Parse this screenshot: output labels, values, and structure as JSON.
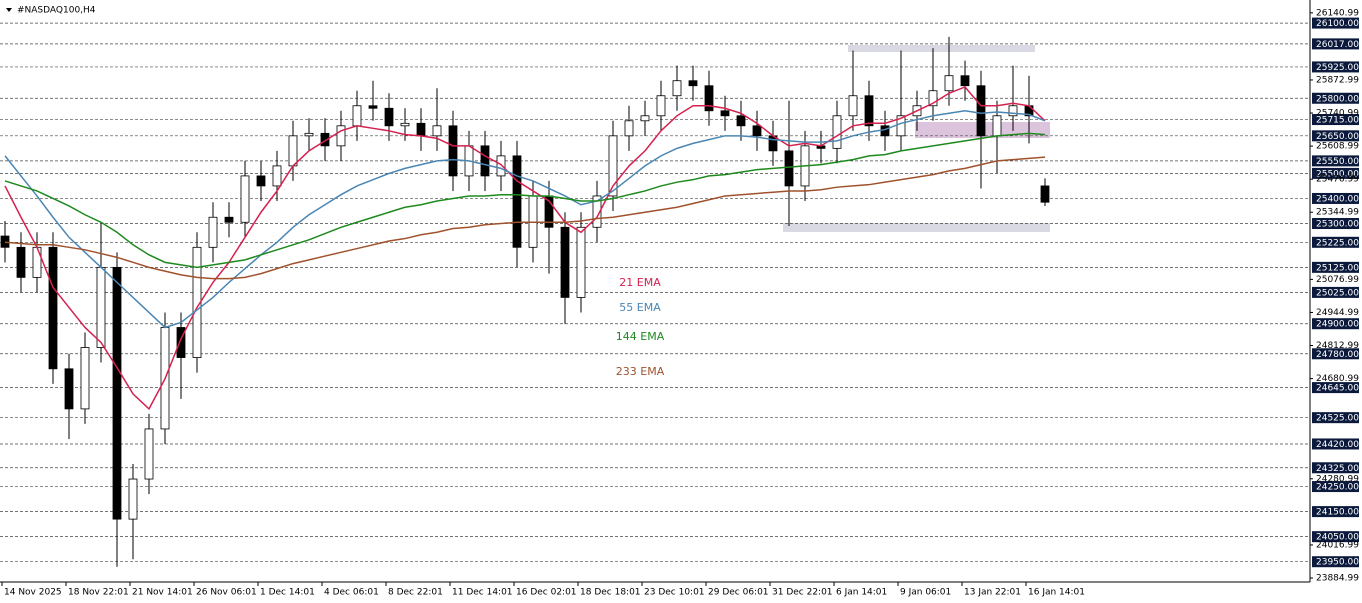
{
  "chart_data": {
    "type": "candlestick",
    "title": "#NASDAQ100,H4",
    "ylim": [
      23877,
      26193
    ],
    "yticks": [
      26140.99,
      25872.99,
      25740.99,
      25608.99,
      25476.99,
      25344.99,
      25076.99,
      24944.99,
      24812.99,
      24680.99,
      24280.99,
      24016.99,
      23884.99
    ],
    "levels": [
      {
        "value": 26100,
        "label": "26100.00"
      },
      {
        "value": 26017,
        "label": "26017.00"
      },
      {
        "value": 25925,
        "label": "25925.00"
      },
      {
        "value": 25800,
        "label": "25800.00"
      },
      {
        "value": 25715,
        "label": "25715.00"
      },
      {
        "value": 25650,
        "label": "25650.00"
      },
      {
        "value": 25550,
        "label": "25550.00"
      },
      {
        "value": 25500,
        "label": "25500.00"
      },
      {
        "value": 25400,
        "label": "25400.00"
      },
      {
        "value": 25300,
        "label": "25300.00"
      },
      {
        "value": 25225,
        "label": "25225.00"
      },
      {
        "value": 25125,
        "label": "25125.00"
      },
      {
        "value": 25025,
        "label": "25025.00"
      },
      {
        "value": 24900,
        "label": "24900.00"
      },
      {
        "value": 24780,
        "label": "24780.00"
      },
      {
        "value": 24645,
        "label": "24645.00"
      },
      {
        "value": 24525,
        "label": "24525.00"
      },
      {
        "value": 24420,
        "label": "24420.00"
      },
      {
        "value": 24325,
        "label": "24325.00"
      },
      {
        "value": 24250,
        "label": "24250.00"
      },
      {
        "value": 24150,
        "label": "24150.00"
      },
      {
        "value": 24050,
        "label": "24050.00"
      },
      {
        "value": 23950,
        "label": "23950.00"
      }
    ],
    "x_labels": [
      "14 Nov 2025",
      "18 Nov 22:01",
      "21 Nov 14:01",
      "26 Nov 06:01",
      "1 Dec 14:01",
      "4 Dec 06:01",
      "8 Dec 22:01",
      "11 Dec 14:01",
      "16 Dec 02:01",
      "18 Dec 18:01",
      "23 Dec 10:01",
      "29 Dec 06:01",
      "31 Dec 22:01",
      "6 Jan 14:01",
      "9 Jan 06:01",
      "13 Jan 22:01",
      "16 Jan 14:01"
    ],
    "open": [
      25250,
      25205,
      25085,
      25205,
      24720,
      24560,
      24805,
      25125,
      24120,
      24280,
      24480,
      24885,
      24765,
      25205,
      25325,
      25305,
      25490,
      25450,
      25530,
      25650,
      25660,
      25610,
      25690,
      25770,
      25760,
      25690,
      25700,
      25650,
      25690,
      25490,
      25610,
      25490,
      25570,
      25205,
      25410,
      25285,
      25005,
      25285,
      25410,
      25650,
      25710,
      25730,
      25810,
      25870,
      25850,
      25750,
      25730,
      25690,
      25650,
      25590,
      25450,
      25610,
      25600,
      25730,
      25810,
      25690,
      25650,
      25730,
      25770,
      25830,
      25890,
      25850,
      25650,
      25730,
      25770,
      25450
    ],
    "high": [
      25310,
      25265,
      25265,
      25265,
      24780,
      24865,
      25300,
      25185,
      24340,
      24540,
      24945,
      24945,
      25265,
      25385,
      25385,
      25550,
      25550,
      25590,
      25710,
      25720,
      25720,
      25750,
      25830,
      25870,
      25820,
      25760,
      25760,
      25840,
      25750,
      25670,
      25670,
      25630,
      25630,
      25470,
      25470,
      25345,
      25345,
      25470,
      25710,
      25770,
      25790,
      25870,
      25930,
      25930,
      25910,
      25810,
      25790,
      25750,
      25710,
      25790,
      25670,
      25670,
      25790,
      25990,
      25870,
      25750,
      25990,
      25830,
      26000,
      26045,
      25950,
      25910,
      25790,
      25930,
      25890,
      25480
    ],
    "low": [
      25145,
      25025,
      25025,
      24660,
      24440,
      24500,
      24745,
      23930,
      23960,
      24220,
      24420,
      24600,
      24705,
      25145,
      25245,
      25245,
      25390,
      25390,
      25470,
      25590,
      25550,
      25550,
      25630,
      25710,
      25630,
      25630,
      25590,
      25590,
      25430,
      25430,
      25430,
      25430,
      25125,
      25145,
      25100,
      24900,
      24945,
      25225,
      25350,
      25590,
      25650,
      25670,
      25750,
      25790,
      25690,
      25670,
      25630,
      25590,
      25530,
      25290,
      25390,
      25540,
      25540,
      25670,
      25630,
      25590,
      25590,
      25670,
      25710,
      25770,
      25790,
      25440,
      25500,
      25670,
      25620,
      25370
    ],
    "close": [
      25205,
      25085,
      25205,
      24720,
      24560,
      24805,
      25125,
      24120,
      24280,
      24480,
      24885,
      24765,
      25205,
      25325,
      25305,
      25490,
      25450,
      25530,
      25650,
      25660,
      25610,
      25690,
      25770,
      25760,
      25690,
      25700,
      25650,
      25690,
      25490,
      25610,
      25490,
      25570,
      25205,
      25410,
      25285,
      25005,
      25285,
      25410,
      25650,
      25710,
      25730,
      25810,
      25870,
      25850,
      25750,
      25730,
      25690,
      25650,
      25590,
      25450,
      25610,
      25600,
      25730,
      25810,
      25690,
      25650,
      25730,
      25770,
      25830,
      25890,
      25850,
      25650,
      25730,
      25770,
      25730,
      25385
    ],
    "series": [
      {
        "name": "21 EMA",
        "color": "#d6204e",
        "values": [
          25450,
          25325,
          25205,
          25045,
          24965,
          24885,
          24825,
          24725,
          24620,
          24560,
          24680,
          24840,
          24965,
          25065,
          25145,
          25245,
          25345,
          25430,
          25530,
          25590,
          25630,
          25670,
          25690,
          25680,
          25670,
          25655,
          25650,
          25640,
          25610,
          25610,
          25570,
          25535,
          25470,
          25430,
          25390,
          25305,
          25265,
          25325,
          25450,
          25530,
          25590,
          25670,
          25730,
          25770,
          25770,
          25760,
          25740,
          25700,
          25650,
          25610,
          25620,
          25610,
          25650,
          25690,
          25700,
          25700,
          25720,
          25750,
          25780,
          25820,
          25845,
          25770,
          25770,
          25780,
          25770,
          25710
        ]
      },
      {
        "name": "55 EMA",
        "color": "#4a86b4",
        "values": [
          25570,
          25490,
          25410,
          25325,
          25245,
          25185,
          25125,
          25065,
          25005,
          24945,
          24885,
          24905,
          24955,
          25005,
          25065,
          25120,
          25175,
          25225,
          25285,
          25335,
          25375,
          25415,
          25450,
          25475,
          25500,
          25520,
          25535,
          25550,
          25555,
          25550,
          25535,
          25520,
          25490,
          25470,
          25440,
          25410,
          25375,
          25390,
          25430,
          25480,
          25530,
          25570,
          25600,
          25620,
          25635,
          25650,
          25650,
          25645,
          25635,
          25630,
          25625,
          25625,
          25630,
          25650,
          25665,
          25675,
          25700,
          25715,
          25730,
          25740,
          25750,
          25740,
          25745,
          25740,
          25735,
          25710
        ]
      },
      {
        "name": "144 EMA",
        "color": "#1e8a1e",
        "values": [
          25470,
          25450,
          25430,
          25400,
          25370,
          25335,
          25305,
          25265,
          25215,
          25175,
          25145,
          25135,
          25125,
          25135,
          25145,
          25155,
          25175,
          25195,
          25215,
          25235,
          25260,
          25285,
          25305,
          25325,
          25345,
          25365,
          25375,
          25390,
          25400,
          25410,
          25410,
          25415,
          25415,
          25410,
          25410,
          25400,
          25390,
          25390,
          25400,
          25415,
          25430,
          25450,
          25465,
          25475,
          25490,
          25495,
          25505,
          25515,
          25520,
          25525,
          25530,
          25535,
          25545,
          25555,
          25570,
          25575,
          25590,
          25600,
          25610,
          25620,
          25630,
          25640,
          25650,
          25655,
          25660,
          25655
        ]
      },
      {
        "name": "233 EMA",
        "color": "#a0522d",
        "values": [
          25225,
          25220,
          25215,
          25215,
          25205,
          25195,
          25180,
          25165,
          25145,
          25125,
          25110,
          25095,
          25085,
          25080,
          25080,
          25085,
          25100,
          25120,
          25140,
          25155,
          25170,
          25185,
          25200,
          25215,
          25230,
          25240,
          25255,
          25265,
          25280,
          25285,
          25295,
          25300,
          25305,
          25305,
          25305,
          25305,
          25310,
          25320,
          25325,
          25335,
          25345,
          25355,
          25365,
          25380,
          25395,
          25410,
          25415,
          25420,
          25425,
          25430,
          25430,
          25435,
          25445,
          25450,
          25455,
          25465,
          25475,
          25485,
          25495,
          25510,
          25520,
          25535,
          25550,
          25555,
          25560,
          25565
        ]
      }
    ]
  }
}
